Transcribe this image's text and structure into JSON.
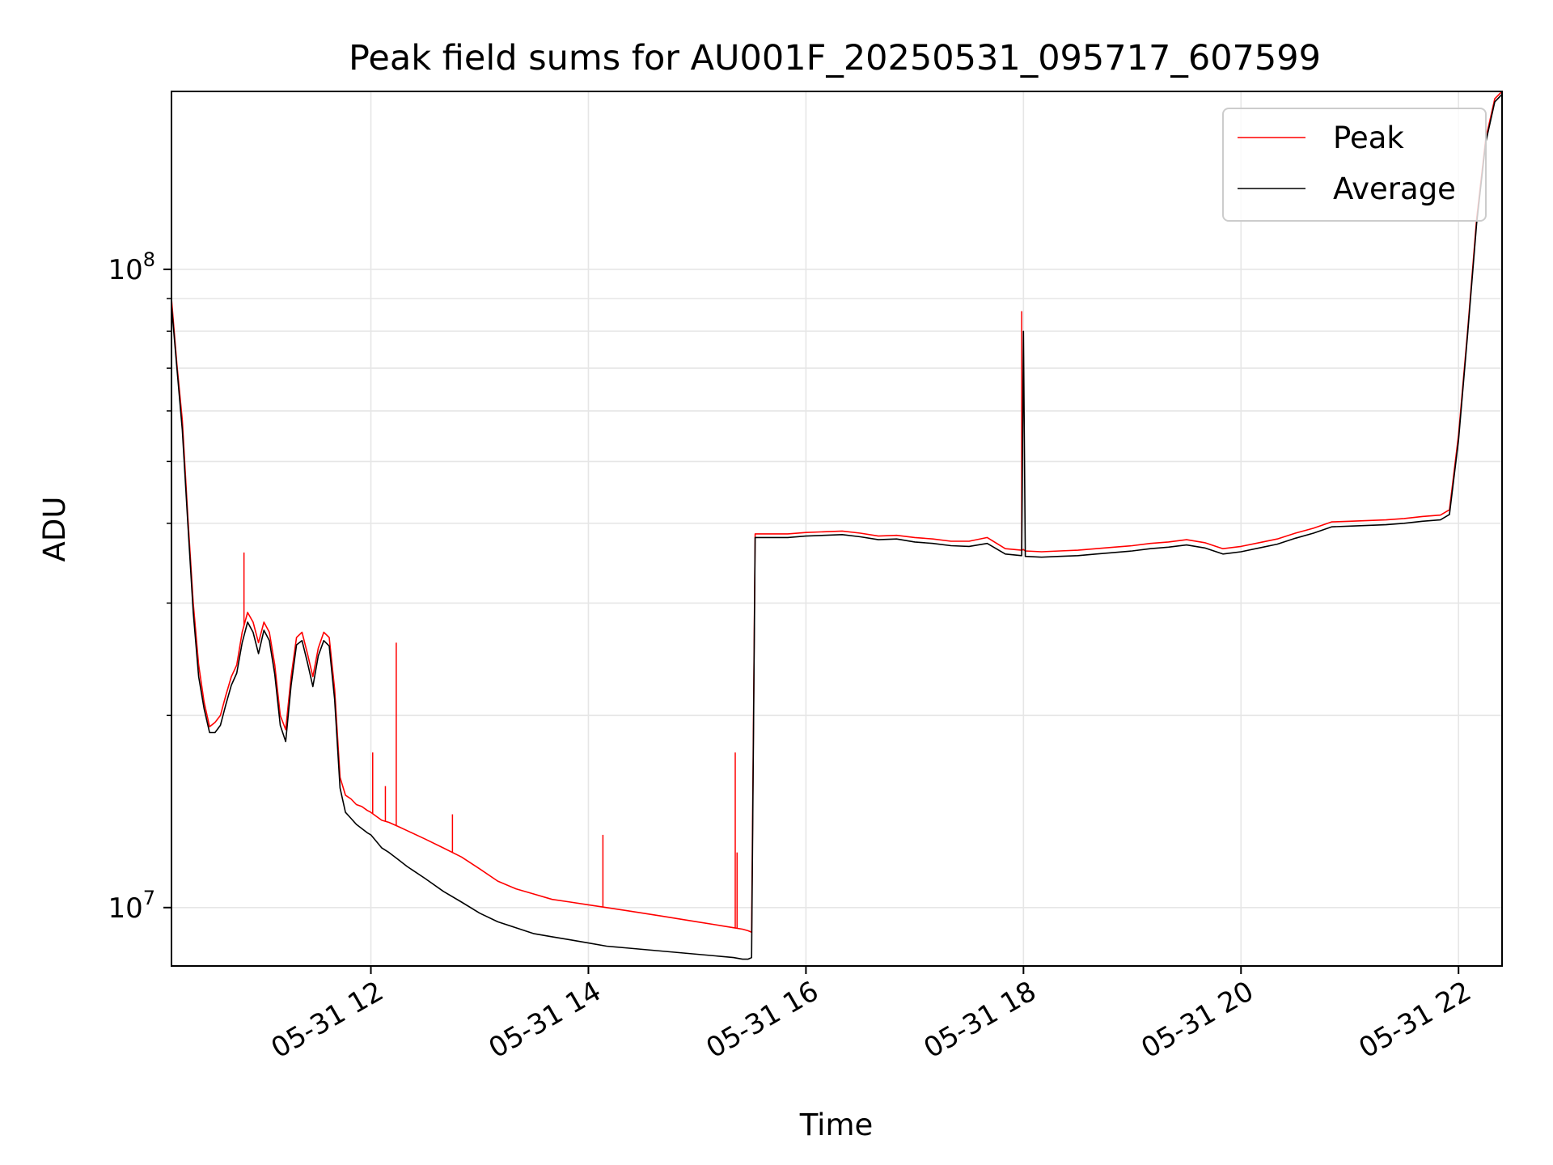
{
  "chart_data": {
    "type": "line",
    "title": "Peak field sums for AU001F_20250531_095717_607599",
    "xlabel": "Time",
    "ylabel": "ADU",
    "yscale": "log",
    "xlim": [
      "2025-05-31 10:10",
      "2025-05-31 22:24"
    ],
    "ylim": [
      8100000,
      190000000
    ],
    "x_ticks": [
      {
        "value": "2025-05-31 12:00",
        "label": "05-31 12"
      },
      {
        "value": "2025-05-31 14:00",
        "label": "05-31 14"
      },
      {
        "value": "2025-05-31 16:00",
        "label": "05-31 16"
      },
      {
        "value": "2025-05-31 18:00",
        "label": "05-31 18"
      },
      {
        "value": "2025-05-31 20:00",
        "label": "05-31 20"
      },
      {
        "value": "2025-05-31 22:00",
        "label": "05-31 22"
      }
    ],
    "y_ticks": [
      {
        "value": 10000000,
        "label_base": "10",
        "label_exp": "7"
      },
      {
        "value": 100000000,
        "label_base": "10",
        "label_exp": "8"
      }
    ],
    "grid": true,
    "legend_position": "top-right",
    "series": [
      {
        "name": "Peak",
        "color": "#ff0000",
        "x": [
          "10:10",
          "10:13",
          "10:16",
          "10:19",
          "10:22",
          "10:25",
          "10:28",
          "10:31",
          "10:34",
          "10:37",
          "10:40",
          "10:43",
          "10:46",
          "10:49",
          "10:52",
          "10:55",
          "10:58",
          "11:01",
          "11:04",
          "11:07",
          "11:10",
          "11:13",
          "11:16",
          "11:19",
          "11:22",
          "11:25",
          "11:28",
          "11:31",
          "11:34",
          "11:37",
          "11:40",
          "11:43",
          "11:46",
          "11:49",
          "11:52",
          "11:55",
          "11:58",
          "12:00",
          "12:03",
          "12:06",
          "12:10",
          "12:15",
          "12:20",
          "12:30",
          "12:40",
          "12:50",
          "13:00",
          "13:10",
          "13:20",
          "13:30",
          "13:40",
          "13:50",
          "14:00",
          "14:10",
          "14:20",
          "14:30",
          "14:40",
          "14:50",
          "15:00",
          "15:10",
          "15:20",
          "15:25",
          "15:28",
          "15:30",
          "15:32",
          "15:40",
          "15:50",
          "16:00",
          "16:10",
          "16:20",
          "16:30",
          "16:40",
          "16:50",
          "17:00",
          "17:10",
          "17:20",
          "17:30",
          "17:40",
          "17:50",
          "17:59",
          "18:00",
          "18:01",
          "18:10",
          "18:20",
          "18:30",
          "18:40",
          "18:50",
          "19:00",
          "19:10",
          "19:20",
          "19:30",
          "19:40",
          "19:50",
          "20:00",
          "20:10",
          "20:20",
          "20:30",
          "20:40",
          "20:50",
          "21:00",
          "21:10",
          "21:20",
          "21:30",
          "21:40",
          "21:50",
          "21:55",
          "22:00",
          "22:05",
          "22:10",
          "22:15",
          "22:20",
          "22:24"
        ],
        "values": [
          90000000,
          71000000,
          58000000,
          41000000,
          30000000,
          24000000,
          21000000,
          19200000,
          19500000,
          20000000,
          21500000,
          23000000,
          24000000,
          27000000,
          29000000,
          28000000,
          26000000,
          28000000,
          27000000,
          24000000,
          20000000,
          19000000,
          23000000,
          26500000,
          27000000,
          25000000,
          23000000,
          25500000,
          27000000,
          26500000,
          22000000,
          16000000,
          15000000,
          14800000,
          14500000,
          14400000,
          14200000,
          14100000,
          13900000,
          13700000,
          13600000,
          13400000,
          13200000,
          12800000,
          12400000,
          12000000,
          11500000,
          11000000,
          10700000,
          10500000,
          10300000,
          10200000,
          10100000,
          10000000,
          9900000,
          9800000,
          9700000,
          9600000,
          9500000,
          9400000,
          9300000,
          9250000,
          9200000,
          9150000,
          38500000,
          38500000,
          38500000,
          38700000,
          38800000,
          38900000,
          38600000,
          38200000,
          38300000,
          38000000,
          37800000,
          37500000,
          37500000,
          38000000,
          36500000,
          36300000,
          36400000,
          36200000,
          36100000,
          36200000,
          36300000,
          36500000,
          36700000,
          36900000,
          37200000,
          37400000,
          37700000,
          37300000,
          36500000,
          36800000,
          37300000,
          37800000,
          38600000,
          39300000,
          40200000,
          40300000,
          40400000,
          40500000,
          40700000,
          41000000,
          41200000,
          42000000,
          55000000,
          80000000,
          120000000,
          160000000,
          185000000,
          190000000
        ],
        "spikes": [
          {
            "x": "10:50",
            "value": 36000000
          },
          {
            "x": "12:01",
            "value": 17500000
          },
          {
            "x": "12:08",
            "value": 15500000
          },
          {
            "x": "12:14",
            "value": 26000000
          },
          {
            "x": "12:45",
            "value": 14000000
          },
          {
            "x": "14:08",
            "value": 13000000
          },
          {
            "x": "15:21",
            "value": 17500000
          },
          {
            "x": "15:22",
            "value": 12200000
          },
          {
            "x": "17:59",
            "value": 86000000
          }
        ]
      },
      {
        "name": "Average",
        "color": "#000000",
        "x": [
          "10:10",
          "10:13",
          "10:16",
          "10:19",
          "10:22",
          "10:25",
          "10:28",
          "10:31",
          "10:34",
          "10:37",
          "10:40",
          "10:43",
          "10:46",
          "10:49",
          "10:52",
          "10:55",
          "10:58",
          "11:01",
          "11:04",
          "11:07",
          "11:10",
          "11:13",
          "11:16",
          "11:19",
          "11:22",
          "11:25",
          "11:28",
          "11:31",
          "11:34",
          "11:37",
          "11:40",
          "11:43",
          "11:46",
          "11:49",
          "11:52",
          "11:55",
          "11:58",
          "12:00",
          "12:03",
          "12:06",
          "12:10",
          "12:15",
          "12:20",
          "12:30",
          "12:40",
          "12:50",
          "13:00",
          "13:10",
          "13:20",
          "13:30",
          "13:40",
          "13:50",
          "14:00",
          "14:10",
          "14:20",
          "14:30",
          "14:40",
          "14:50",
          "15:00",
          "15:10",
          "15:20",
          "15:25",
          "15:28",
          "15:30",
          "15:32",
          "15:40",
          "15:50",
          "16:00",
          "16:10",
          "16:20",
          "16:30",
          "16:40",
          "16:50",
          "17:00",
          "17:10",
          "17:20",
          "17:30",
          "17:40",
          "17:50",
          "17:59",
          "18:00",
          "18:01",
          "18:10",
          "18:20",
          "18:30",
          "18:40",
          "18:50",
          "19:00",
          "19:10",
          "19:20",
          "19:30",
          "19:40",
          "19:50",
          "20:00",
          "20:10",
          "20:20",
          "20:30",
          "20:40",
          "20:50",
          "21:00",
          "21:10",
          "21:20",
          "21:30",
          "21:40",
          "21:50",
          "21:55",
          "22:00",
          "22:05",
          "22:10",
          "22:15",
          "22:20",
          "22:24"
        ],
        "values": [
          88000000,
          70000000,
          56000000,
          40000000,
          29000000,
          23000000,
          20500000,
          18800000,
          18800000,
          19300000,
          20800000,
          22300000,
          23300000,
          26000000,
          28000000,
          27000000,
          25000000,
          27200000,
          26200000,
          23200000,
          19300000,
          18200000,
          22300000,
          25800000,
          26200000,
          24200000,
          22200000,
          24800000,
          26200000,
          25700000,
          21200000,
          15400000,
          14100000,
          13800000,
          13500000,
          13300000,
          13100000,
          13000000,
          12700000,
          12400000,
          12200000,
          11900000,
          11600000,
          11100000,
          10600000,
          10200000,
          9800000,
          9500000,
          9300000,
          9100000,
          9000000,
          8900000,
          8800000,
          8700000,
          8650000,
          8600000,
          8550000,
          8500000,
          8450000,
          8400000,
          8350000,
          8300000,
          8300000,
          8350000,
          38000000,
          38000000,
          38000000,
          38200000,
          38300000,
          38400000,
          38100000,
          37700000,
          37800000,
          37400000,
          37200000,
          36900000,
          36800000,
          37200000,
          35800000,
          35600000,
          80000000,
          35500000,
          35400000,
          35500000,
          35600000,
          35800000,
          36000000,
          36200000,
          36500000,
          36700000,
          37000000,
          36600000,
          35800000,
          36100000,
          36600000,
          37100000,
          37900000,
          38600000,
          39500000,
          39600000,
          39700000,
          39800000,
          40000000,
          40300000,
          40500000,
          41300000,
          54000000,
          79000000,
          118000000,
          158000000,
          183000000,
          188000000
        ]
      }
    ]
  }
}
